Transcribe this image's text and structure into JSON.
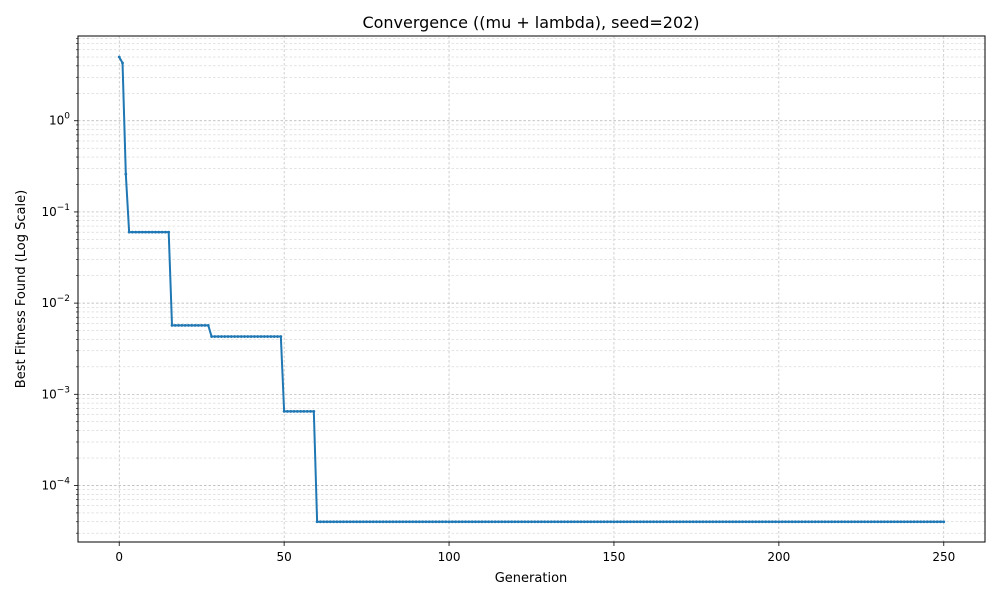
{
  "chart_data": {
    "type": "line",
    "title": "Convergence ((mu + lambda), seed=202)",
    "xlabel": "Generation",
    "ylabel": "Best Fitness Found (Log Scale)",
    "xlim": [
      -12.5,
      262.5
    ],
    "ylim": [
      2.4e-05,
      8.5
    ],
    "yscale": "log",
    "grid": true,
    "xticks": [
      0,
      50,
      100,
      150,
      200,
      250
    ],
    "yticks": [
      {
        "value": 1,
        "base": "10",
        "exp": "0"
      },
      {
        "value": 0.1,
        "base": "10",
        "exp": "−1"
      },
      {
        "value": 0.01,
        "base": "10",
        "exp": "−2"
      },
      {
        "value": 0.001,
        "base": "10",
        "exp": "−3"
      },
      {
        "value": 0.0001,
        "base": "10",
        "exp": "−4"
      }
    ],
    "line_color": "#1f77b4",
    "series": [
      {
        "steps": [
          {
            "from": 0,
            "to": 0,
            "value": 5.0
          },
          {
            "from": 1,
            "to": 1,
            "value": 4.3
          },
          {
            "from": 2,
            "to": 2,
            "value": 0.26
          },
          {
            "from": 3,
            "to": 15,
            "value": 0.06
          },
          {
            "from": 16,
            "to": 27,
            "value": 0.0057
          },
          {
            "from": 28,
            "to": 49,
            "value": 0.0043
          },
          {
            "from": 50,
            "to": 59,
            "value": 0.00065
          },
          {
            "from": 60,
            "to": 250,
            "value": 4e-05
          }
        ]
      }
    ]
  }
}
